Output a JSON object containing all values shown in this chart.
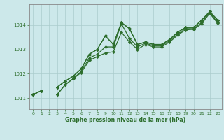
{
  "xlabel": "Graphe pression niveau de la mer (hPa)",
  "background_color": "#cce8ea",
  "grid_color": "#aacccc",
  "line_color": "#2d6e2d",
  "xlim": [
    -0.5,
    23.5
  ],
  "ylim": [
    1010.55,
    1014.85
  ],
  "yticks": [
    1011,
    1012,
    1013,
    1014
  ],
  "xticks": [
    0,
    1,
    2,
    3,
    4,
    5,
    6,
    7,
    8,
    9,
    10,
    11,
    12,
    13,
    14,
    15,
    16,
    17,
    18,
    19,
    20,
    21,
    22,
    23
  ],
  "series": [
    [
      1011.15,
      1011.3,
      null,
      1011.45,
      1011.7,
      1011.9,
      1012.2,
      1012.8,
      1013.0,
      1013.55,
      1013.2,
      1014.1,
      1013.85,
      1013.2,
      1013.3,
      1013.2,
      1013.2,
      1013.4,
      1013.7,
      1013.9,
      1013.9,
      1014.2,
      1014.55,
      1014.2
    ],
    [
      1011.15,
      1011.3,
      null,
      1011.15,
      1011.55,
      1011.8,
      1012.1,
      1012.65,
      1012.8,
      1013.1,
      1013.1,
      1014.05,
      1013.45,
      1013.1,
      1013.25,
      1013.15,
      1013.15,
      1013.35,
      1013.62,
      1013.85,
      1013.85,
      1014.1,
      1014.52,
      1014.1
    ],
    [
      1011.15,
      1011.3,
      null,
      1011.15,
      1011.55,
      1011.8,
      1012.05,
      1012.55,
      1012.7,
      1012.85,
      1012.9,
      1013.7,
      1013.3,
      1013.0,
      1013.2,
      1013.1,
      1013.1,
      1013.3,
      1013.58,
      1013.8,
      1013.82,
      1014.05,
      1014.48,
      1014.07
    ],
    [
      null,
      null,
      null,
      1011.45,
      1011.7,
      1011.9,
      1012.2,
      1012.8,
      1013.0,
      1013.55,
      1013.2,
      1014.1,
      1013.85,
      1013.2,
      1013.3,
      1013.2,
      1013.2,
      1013.4,
      1013.7,
      1013.9,
      1013.9,
      1014.2,
      1014.55,
      1014.2
    ]
  ],
  "show_markers": [
    true,
    true,
    true,
    true
  ],
  "marker": "D",
  "markersize": 2.2,
  "linewidth": 0.9
}
